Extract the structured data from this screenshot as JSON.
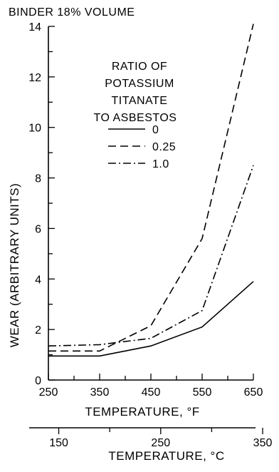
{
  "chart_data": {
    "type": "line",
    "title": "BINDER 18% VOLUME",
    "xlabel": "TEMPERATURE, °F",
    "x2label": "TEMPERATURE, °C",
    "ylabel": "WEAR (ARBITRARY UNITS)",
    "xlim": [
      250,
      650
    ],
    "ylim": [
      0,
      14
    ],
    "x2lim": [
      121,
      343
    ],
    "x_ticks": [
      "250",
      "350",
      "450",
      "550",
      "650"
    ],
    "x_tick_values": [
      250,
      350,
      450,
      550,
      650
    ],
    "y_ticks": [
      "0",
      "2",
      "4",
      "6",
      "8",
      "10",
      "12",
      "14"
    ],
    "y_tick_values": [
      0,
      2,
      4,
      6,
      8,
      10,
      12,
      14
    ],
    "x2_ticks": [
      "150",
      "250",
      "350"
    ],
    "x2_tick_values": [
      150,
      250,
      350
    ],
    "legend_title": [
      "RATIO OF",
      "POTASSIUM",
      "TITANATE",
      "TO ASBESTOS"
    ],
    "series": [
      {
        "name": "0",
        "dash": "solid",
        "x": [
          250,
          350,
          450,
          550,
          650
        ],
        "y": [
          0.95,
          0.95,
          1.35,
          2.1,
          3.9
        ]
      },
      {
        "name": "0.25",
        "dash": "dashed",
        "x": [
          250,
          350,
          450,
          550,
          650
        ],
        "y": [
          1.15,
          1.15,
          2.15,
          5.6,
          14.1
        ]
      },
      {
        "name": "1.0",
        "dash": "dashdot",
        "x": [
          250,
          350,
          450,
          550,
          650
        ],
        "y": [
          1.35,
          1.4,
          1.65,
          2.75,
          8.5
        ]
      }
    ],
    "grid": false,
    "legend_position": "upper-middle"
  }
}
